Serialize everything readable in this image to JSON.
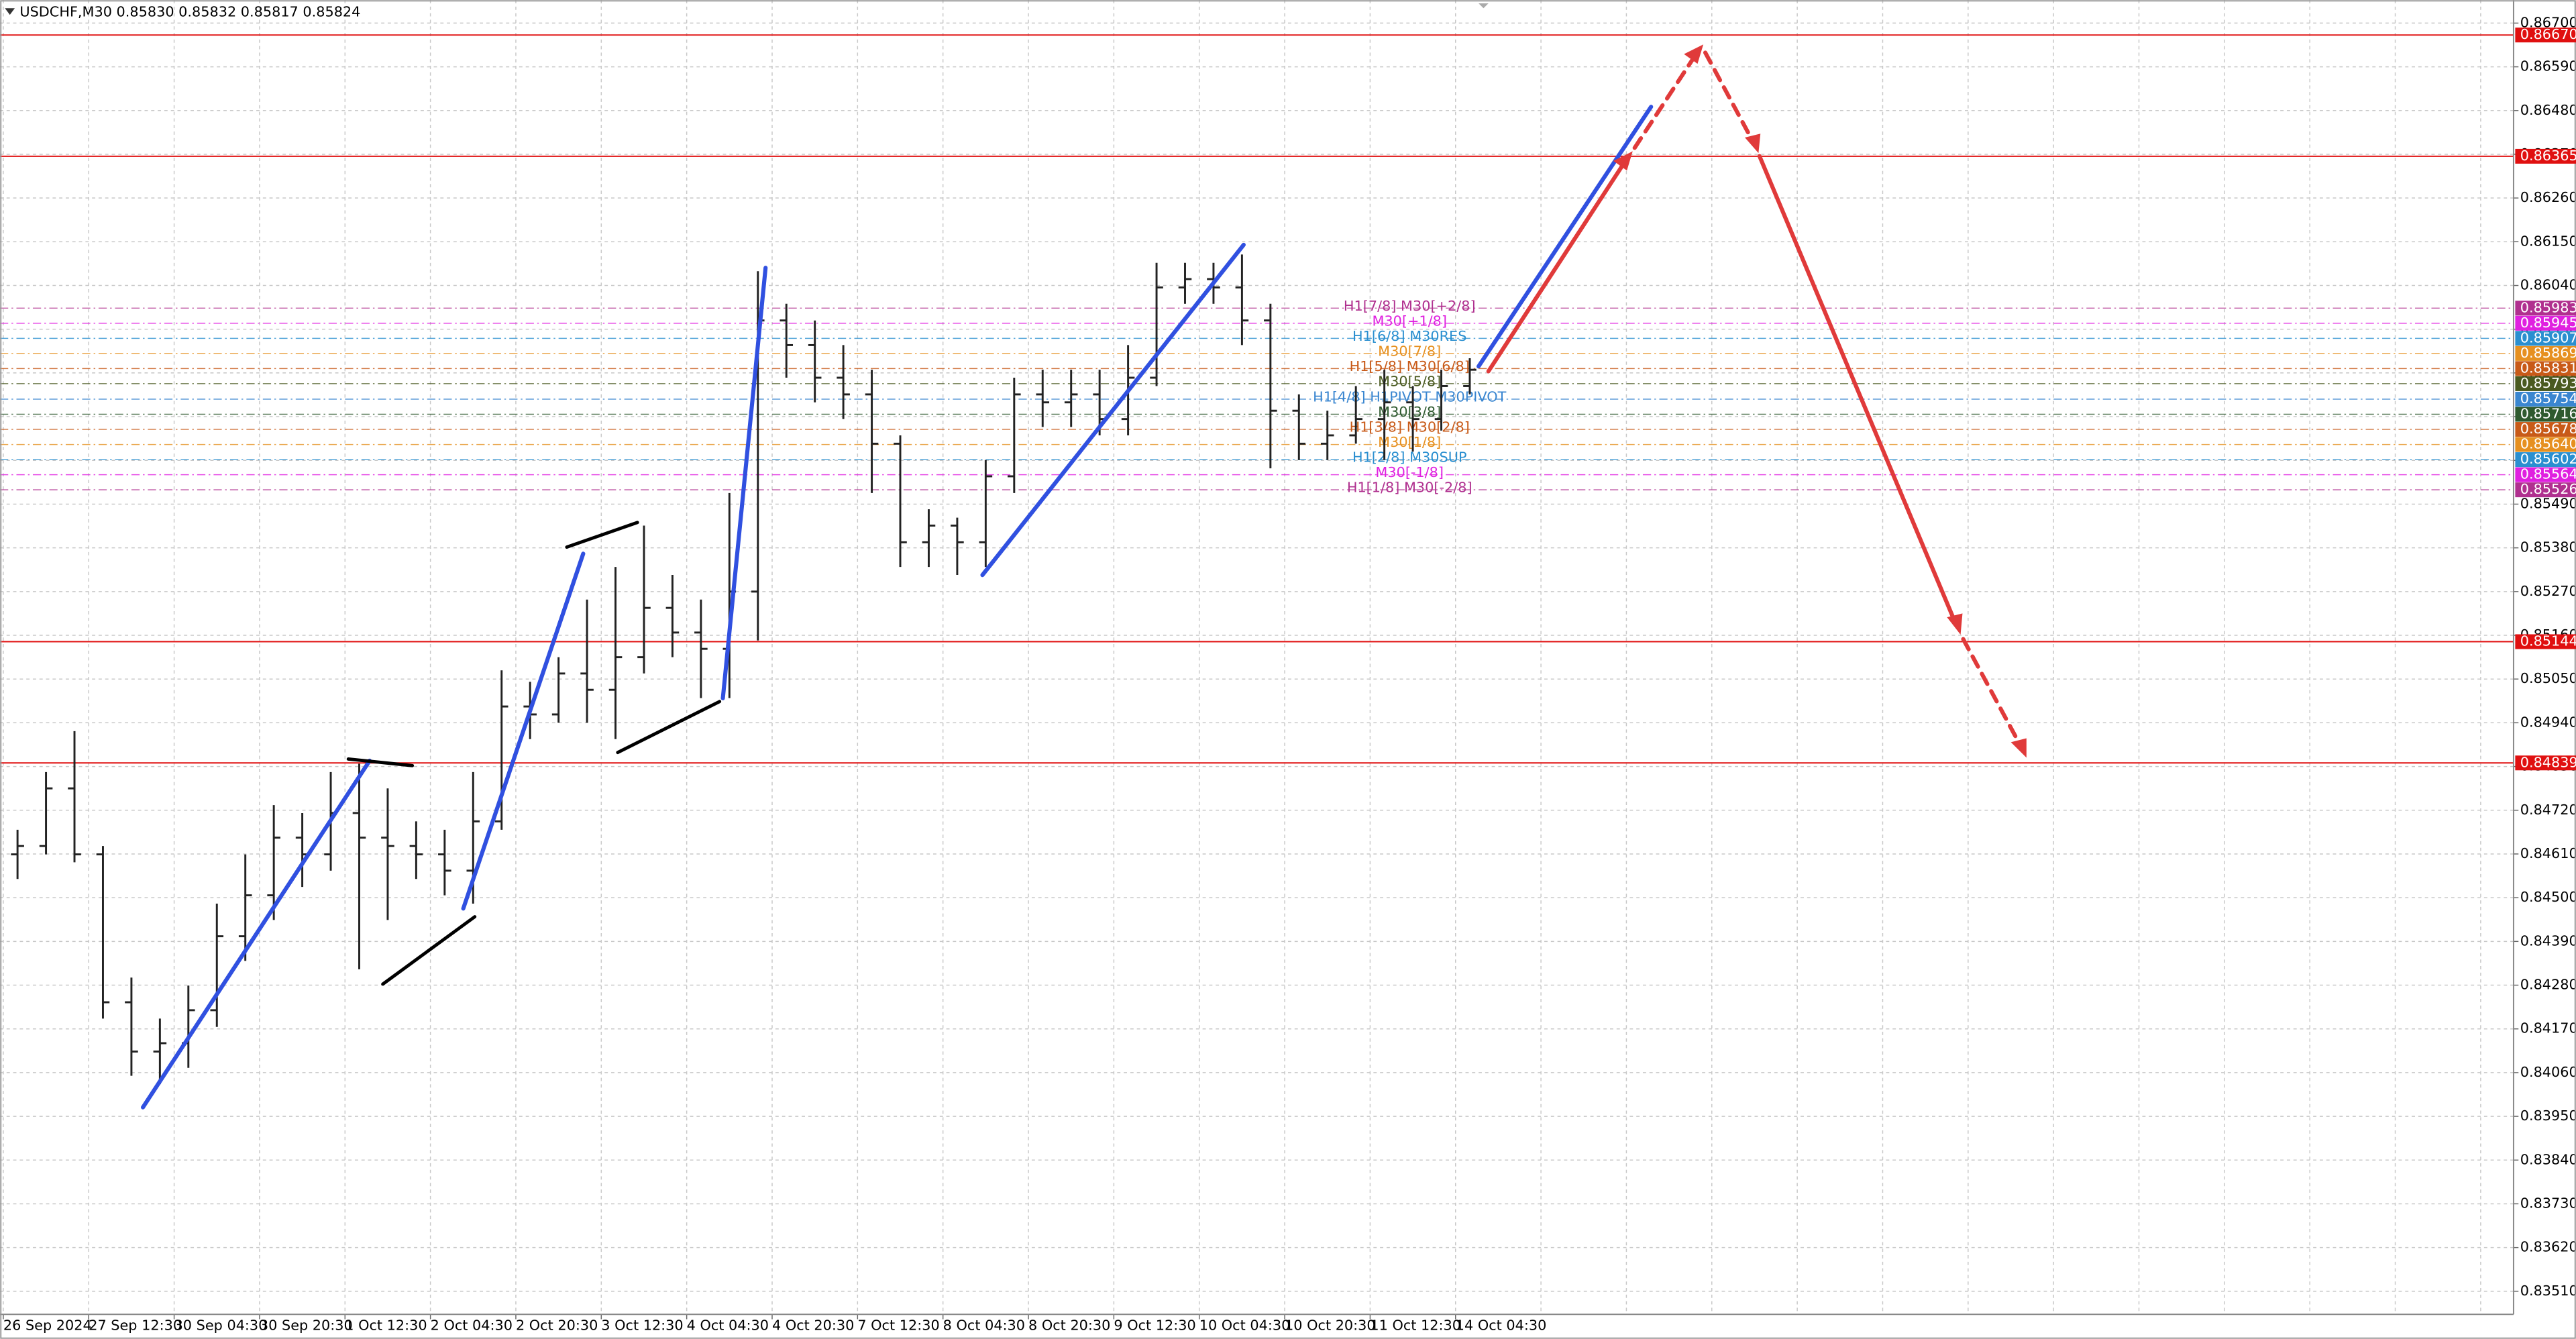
{
  "chart_data": {
    "type": "ohlc",
    "title": "USDCHF,M30  0.85830 0.85832 0.85817 0.85824",
    "bar_color": "#222222",
    "grid": true,
    "ylim": [
      0.83452,
      0.86758
    ],
    "yticks": [
      {
        "value": 0.8351,
        "label": "0.83510"
      },
      {
        "value": 0.8362,
        "label": "0.83620"
      },
      {
        "value": 0.8373,
        "label": "0.83730"
      },
      {
        "value": 0.8384,
        "label": "0.83840"
      },
      {
        "value": 0.8395,
        "label": "0.83950"
      },
      {
        "value": 0.8406,
        "label": "0.84060"
      },
      {
        "value": 0.8417,
        "label": "0.84170"
      },
      {
        "value": 0.8428,
        "label": "0.84280"
      },
      {
        "value": 0.8439,
        "label": "0.84390"
      },
      {
        "value": 0.845,
        "label": "0.84500"
      },
      {
        "value": 0.8461,
        "label": "0.84610"
      },
      {
        "value": 0.8472,
        "label": "0.84720"
      },
      {
        "value": 0.8483,
        "label": "0.84830"
      },
      {
        "value": 0.8494,
        "label": "0.84940"
      },
      {
        "value": 0.8505,
        "label": "0.85050"
      },
      {
        "value": 0.8516,
        "label": "0.85160"
      },
      {
        "value": 0.8527,
        "label": "0.85270"
      },
      {
        "value": 0.8538,
        "label": "0.85380"
      },
      {
        "value": 0.8549,
        "label": "0.85490"
      },
      {
        "value": 0.856,
        "label": "0.85600"
      },
      {
        "value": 0.8571,
        "label": "0.85710"
      },
      {
        "value": 0.8582,
        "label": "0.85820"
      },
      {
        "value": 0.8593,
        "label": "0.85930"
      },
      {
        "value": 0.8604,
        "label": "0.86040"
      },
      {
        "value": 0.8615,
        "label": "0.86150"
      },
      {
        "value": 0.8626,
        "label": "0.86260"
      },
      {
        "value": 0.8637,
        "label": "0.86370"
      },
      {
        "value": 0.8648,
        "label": "0.86480"
      },
      {
        "value": 0.8659,
        "label": "0.86590"
      },
      {
        "value": 0.867,
        "label": "0.86700"
      }
    ],
    "categories": [
      "26 Sep 2024",
      null,
      null,
      "27 Sep 12:30",
      null,
      null,
      "30 Sep 04:30",
      null,
      null,
      "30 Sep 20:30",
      null,
      null,
      "1 Oct 12:30",
      null,
      null,
      "2 Oct 04:30",
      null,
      null,
      "2 Oct 20:30",
      null,
      null,
      "3 Oct 12:30",
      null,
      null,
      "4 Oct 04:30",
      null,
      null,
      "4 Oct 20:30",
      null,
      null,
      "7 Oct 12:30",
      null,
      null,
      "8 Oct 04:30",
      null,
      null,
      "8 Oct 20:30",
      null,
      null,
      "9 Oct 12:30",
      null,
      null,
      "10 Oct 04:30",
      null,
      null,
      "10 Oct 20:30",
      null,
      null,
      "11 Oct 12:30",
      null,
      null,
      "14 Oct 04:30"
    ],
    "open": [
      0.84609,
      0.8463,
      0.84775,
      0.84609,
      0.84237,
      0.84113,
      0.84134,
      0.84217,
      0.84403,
      0.84506,
      0.84651,
      0.84609,
      0.84713,
      0.84651,
      0.8463,
      0.84609,
      0.84568,
      0.84692,
      0.84981,
      0.84961,
      0.85064,
      0.85023,
      0.85105,
      0.85229,
      0.85167,
      0.85126,
      0.8527,
      0.85952,
      0.8589,
      0.85808,
      0.85766,
      0.85642,
      0.85394,
      0.85436,
      0.85394,
      0.8556,
      0.85766,
      0.85746,
      0.85766,
      0.85704,
      0.85808,
      0.86035,
      0.86056,
      0.86035,
      0.85952,
      0.85725,
      0.85642,
      0.85663,
      0.85704,
      0.85746,
      0.85704,
      0.85787
    ],
    "high": [
      0.84671,
      0.84816,
      0.84919,
      0.8463,
      0.84299,
      0.84196,
      0.84279,
      0.84485,
      0.84609,
      0.84733,
      0.84713,
      0.84816,
      0.84837,
      0.84775,
      0.84692,
      0.84671,
      0.84816,
      0.85072,
      0.85043,
      0.85105,
      0.8525,
      0.85332,
      0.85436,
      0.85312,
      0.8525,
      0.85518,
      0.86076,
      0.85994,
      0.85952,
      0.8589,
      0.85828,
      0.85663,
      0.85477,
      0.85456,
      0.85601,
      0.85808,
      0.85828,
      0.85828,
      0.85828,
      0.8589,
      0.86097,
      0.86097,
      0.86097,
      0.86118,
      0.85994,
      0.85766,
      0.85725,
      0.85787,
      0.85828,
      0.85787,
      0.85828,
      0.85857
    ],
    "low": [
      0.84547,
      0.84609,
      0.84589,
      0.84196,
      0.84052,
      0.84031,
      0.84072,
      0.84175,
      0.84341,
      0.84444,
      0.84527,
      0.84568,
      0.8432,
      0.84444,
      0.84547,
      0.84506,
      0.84485,
      0.84671,
      0.84899,
      0.8494,
      0.8494,
      0.84899,
      0.85064,
      0.85105,
      0.85002,
      0.85002,
      0.85147,
      0.85808,
      0.85746,
      0.85704,
      0.85518,
      0.85332,
      0.85332,
      0.85312,
      0.85332,
      0.85518,
      0.85684,
      0.85684,
      0.85663,
      0.85663,
      0.85787,
      0.85994,
      0.85994,
      0.8589,
      0.8558,
      0.85601,
      0.85601,
      0.85642,
      0.85601,
      0.85622,
      0.85675,
      0.85766
    ],
    "close": [
      0.8463,
      0.84775,
      0.84609,
      0.84237,
      0.84113,
      0.84134,
      0.84217,
      0.84403,
      0.84506,
      0.84651,
      0.84609,
      0.84713,
      0.84651,
      0.8463,
      0.84609,
      0.84568,
      0.84692,
      0.84981,
      0.84961,
      0.85064,
      0.85023,
      0.85105,
      0.85229,
      0.85167,
      0.85126,
      0.8527,
      0.85952,
      0.8589,
      0.85808,
      0.85766,
      0.85642,
      0.85394,
      0.85436,
      0.85394,
      0.8556,
      0.85766,
      0.85746,
      0.85766,
      0.85704,
      0.85808,
      0.86035,
      0.86056,
      0.86035,
      0.85952,
      0.85725,
      0.85642,
      0.85663,
      0.85704,
      0.85746,
      0.85704,
      0.85787,
      0.85828
    ],
    "levels": [
      {
        "value": 0.8667,
        "label": "0.86670",
        "color": "#e01010"
      },
      {
        "value": 0.86365,
        "label": "0.86365",
        "color": "#e01010"
      },
      {
        "value": 0.85144,
        "label": "0.85144",
        "color": "#e01010"
      },
      {
        "value": 0.84839,
        "label": "0.84839",
        "color": "#e01010"
      }
    ],
    "murrey_levels": [
      {
        "value": 0.85983,
        "label": "0.85983",
        "text": "H1[7/8] M30[+2/8]",
        "color": "#b0308f"
      },
      {
        "value": 0.85945,
        "label": "0.85945",
        "text": "M30[+1/8]",
        "color": "#e020e0"
      },
      {
        "value": 0.85907,
        "label": "0.85907",
        "text": "H1[6/8] M30RES",
        "color": "#2a8fd0"
      },
      {
        "value": 0.85869,
        "label": "0.85869",
        "text": "M30[7/8]",
        "color": "#e69020"
      },
      {
        "value": 0.85831,
        "label": "0.85831",
        "text": "H1[5/8] M30[6/8]",
        "color": "#c85a18"
      },
      {
        "value": 0.85793,
        "label": "0.85793",
        "text": "M30[5/8]",
        "color": "#4a5a20"
      },
      {
        "value": 0.85754,
        "label": "0.85754",
        "text": "H1[4/8] H1PIVOT M30PIVOT",
        "color": "#3a86d0"
      },
      {
        "value": 0.85716,
        "label": "0.85716",
        "text": "M30[3/8]",
        "color": "#2f5a2f"
      },
      {
        "value": 0.85678,
        "label": "0.85678",
        "text": "H1[3/8] M30[2/8]",
        "color": "#c85a18"
      },
      {
        "value": 0.8564,
        "label": "0.85640",
        "text": "M30[1/8]",
        "color": "#e69020"
      },
      {
        "value": 0.85602,
        "label": "0.85602",
        "text": "H1[2/8] M30SUP",
        "color": "#2a8fd0"
      },
      {
        "value": 0.85564,
        "label": "0.85564",
        "text": "M30[-1/8]",
        "color": "#e020e0"
      },
      {
        "value": 0.85526,
        "label": "0.85526",
        "text": "H1[1/8] M30[-2/8]",
        "color": "#b0308f"
      }
    ]
  }
}
